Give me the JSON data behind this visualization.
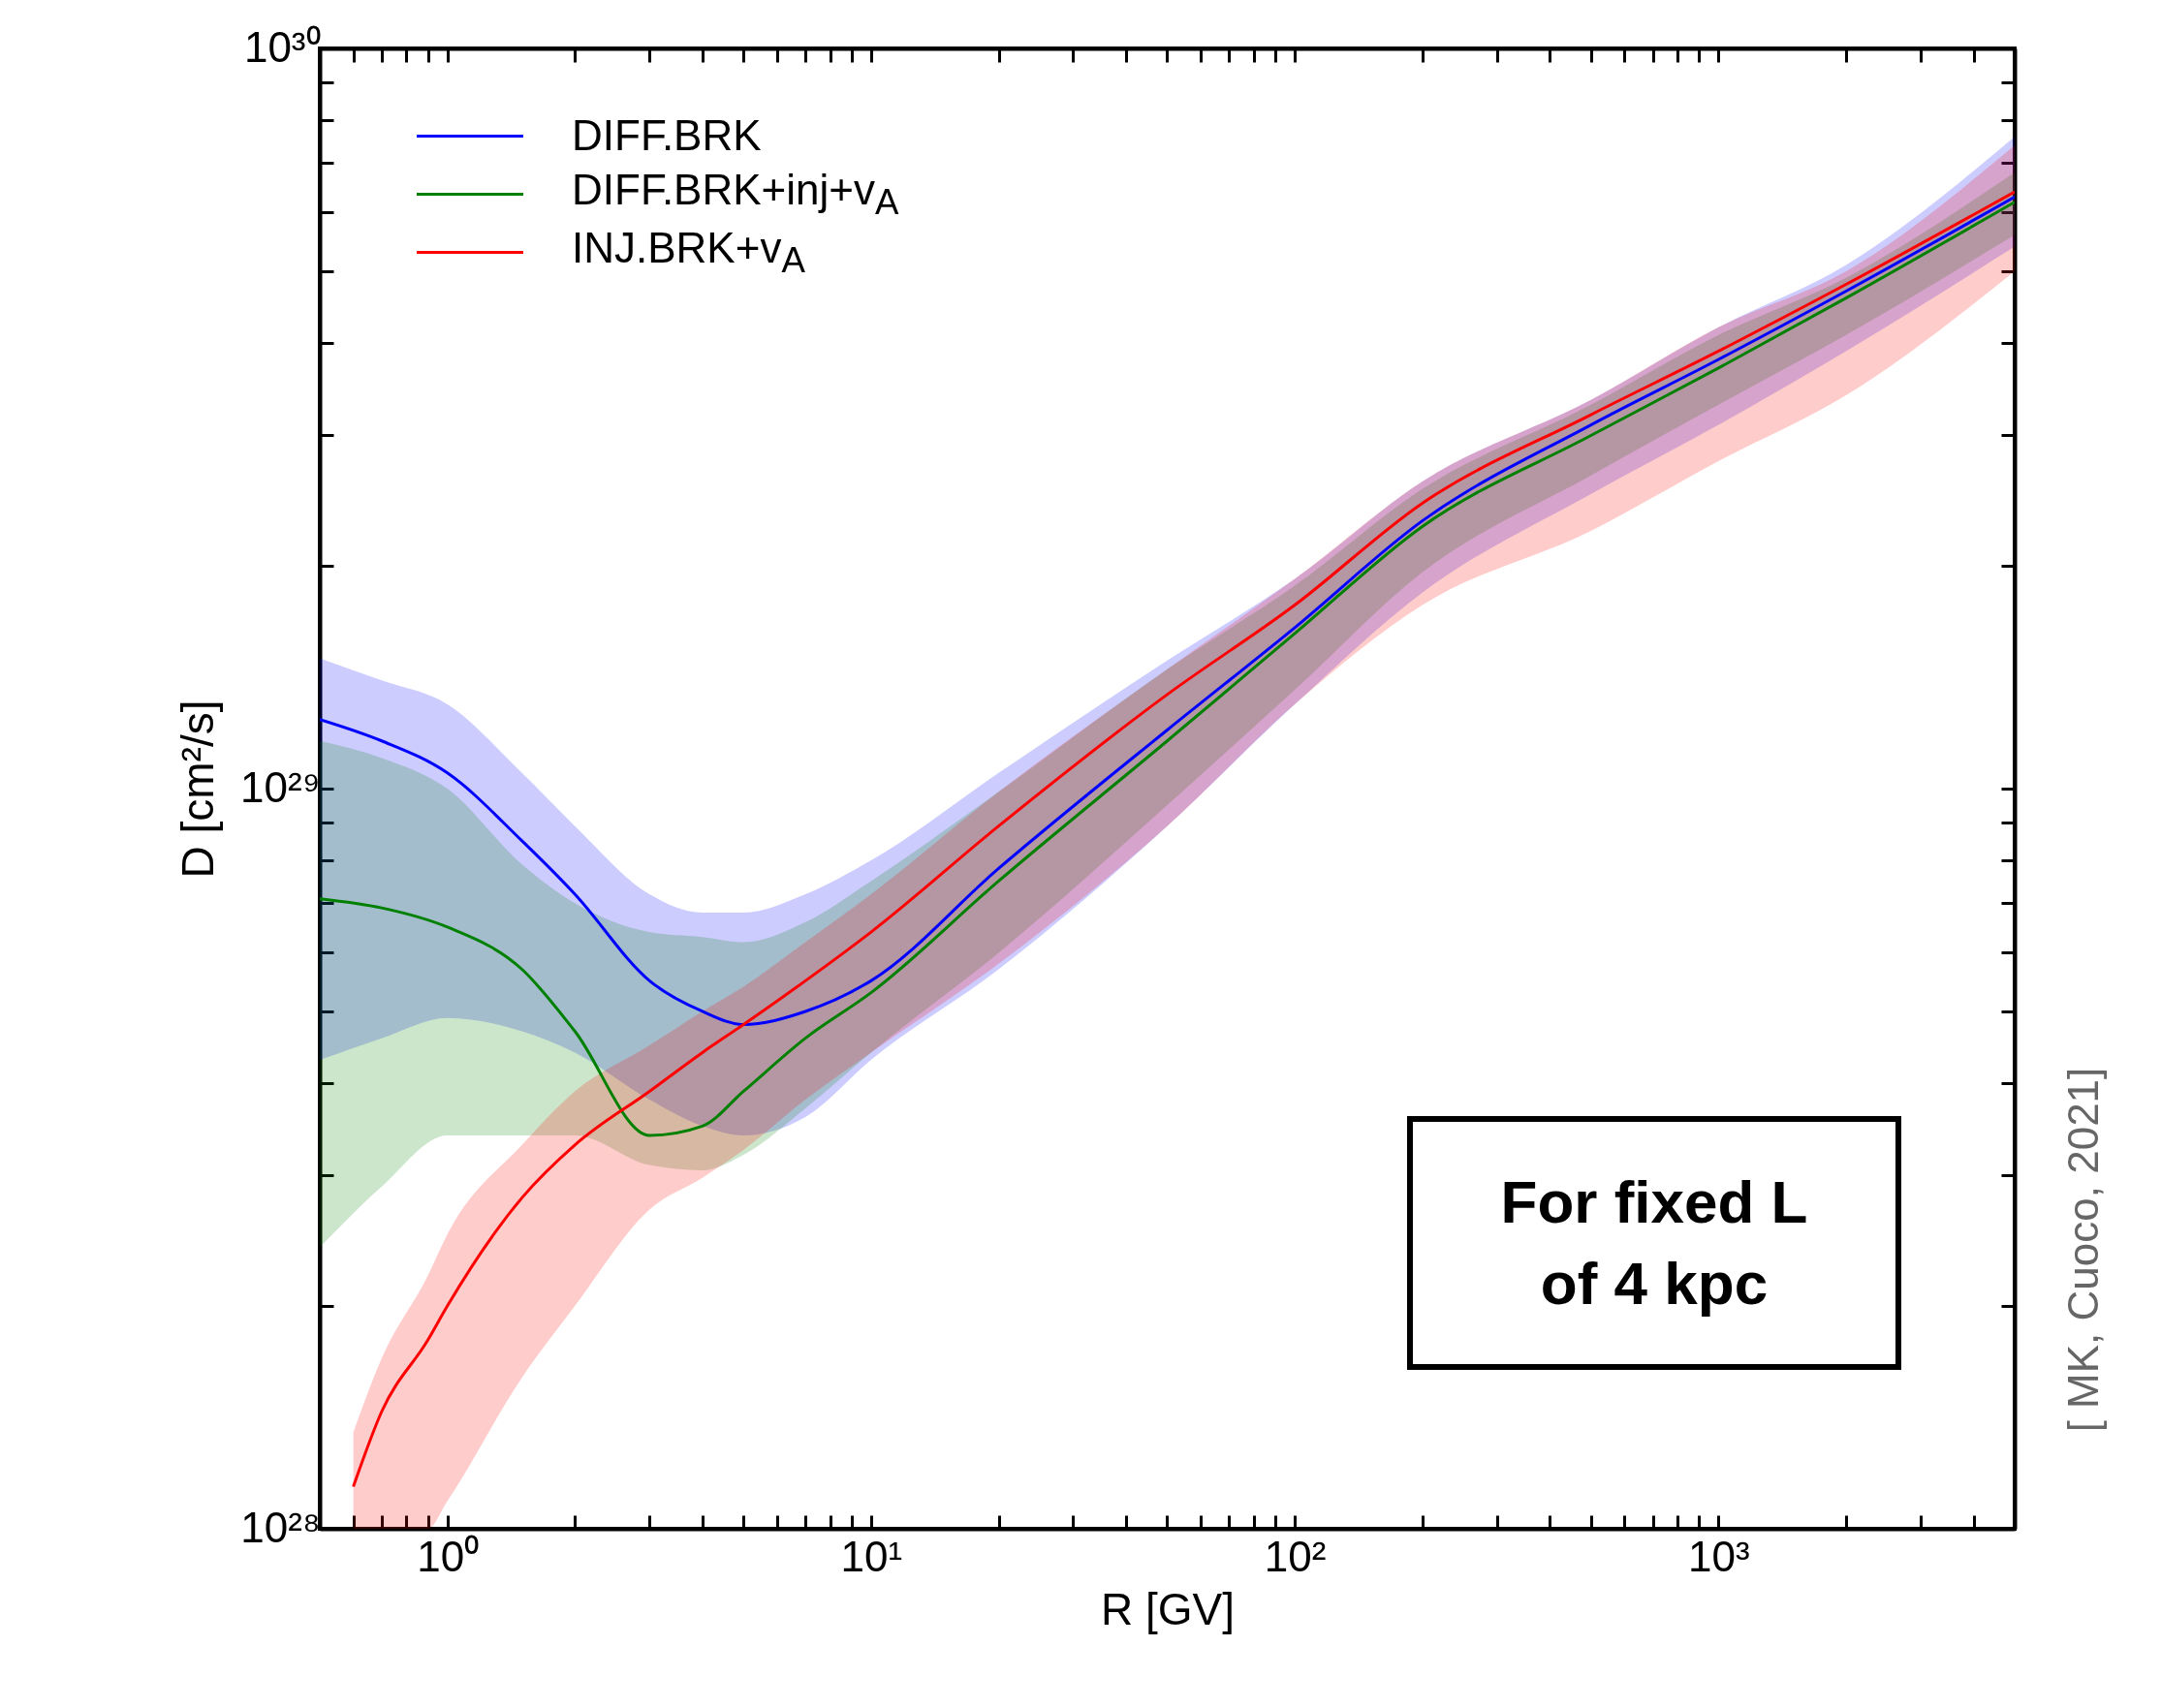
{
  "chart_data": {
    "type": "line",
    "xlabel": "R [GV]",
    "ylabel": "D [cm²/s]",
    "x": [
      0.5,
      0.7,
      1,
      1.5,
      2,
      3,
      4,
      5,
      7,
      10,
      20,
      50,
      100,
      200,
      500,
      1000,
      2000,
      5000
    ],
    "series": [
      {
        "name": "DIFF.BRK",
        "color": "#0000ff",
        "values": [
          1.24e+29,
          1.16e+29,
          1.05e+29,
          8.5e+28,
          7.2e+28,
          5.5e+28,
          5e+28,
          4.8e+28,
          5e+28,
          5.5e+28,
          7.8e+28,
          1.2e+29,
          1.65e+29,
          2.3e+29,
          3.1e+29,
          3.8e+29,
          4.7e+29,
          6.3e+29
        ],
        "lower": [
          4.3e+28,
          4.6e+28,
          4.9e+28,
          4.7e+28,
          4.4e+28,
          3.8e+28,
          3.5e+28,
          3.4e+28,
          3.6e+28,
          4.3e+28,
          5.7e+28,
          8.9e+28,
          1.3e+29,
          1.84e+29,
          2.5e+29,
          3.1e+29,
          3.9e+29,
          5.4e+29
        ],
        "upper": [
          1.5e+29,
          1.4e+29,
          1.3e+29,
          1.05e+29,
          8.9e+28,
          7.2e+28,
          6.8e+28,
          6.8e+28,
          7.2e+28,
          8e+28,
          1.05e+29,
          1.49e+29,
          1.92e+29,
          2.6e+29,
          3.35e+29,
          4.2e+29,
          5.1e+29,
          7.6e+29
        ]
      },
      {
        "name": "DIFF.BRK+inj+v$_{A}$",
        "color": "#008000",
        "values": [
          7.1e+28,
          6.9e+28,
          6.5e+28,
          5.7e+28,
          4.7e+28,
          3.4e+28,
          3.5e+28,
          3.9e+28,
          4.6e+28,
          5.3e+28,
          7.5e+28,
          1.16e+29,
          1.62e+29,
          2.26e+29,
          3e+29,
          3.7e+29,
          4.6e+29,
          6.2e+29
        ],
        "lower": [
          2.4e+28,
          2.9e+28,
          3.4e+28,
          3.4e+28,
          3.4e+28,
          3.1e+28,
          3.05e+28,
          3.2e+28,
          3.7e+28,
          4.4e+28,
          6e+28,
          9.5e+28,
          1.36e+29,
          1.96e+29,
          2.65e+29,
          3.3e+29,
          4.1e+29,
          5.6e+29
        ],
        "upper": [
          1.16e+29,
          1.1e+29,
          1e+29,
          7.9e+28,
          7e+28,
          6.4e+28,
          6.3e+28,
          6.2e+28,
          6.6e+28,
          7.5e+28,
          9.9e+28,
          1.45e+29,
          1.88e+29,
          2.54e+29,
          3.3e+29,
          4.1e+29,
          4.9e+29,
          6.8e+29
        ]
      },
      {
        "name": "INJ.BRK+v$_{A}$",
        "color": "#ff0000",
        "x": [
          0.6,
          0.7,
          0.9,
          1,
          1.5,
          2,
          3,
          4,
          5,
          7,
          10,
          20,
          50,
          100,
          200,
          500,
          1000,
          2000,
          5000
        ],
        "values": [
          1.14e+28,
          1.44e+28,
          1.8e+28,
          2e+28,
          2.8e+28,
          3.3e+28,
          3.9e+28,
          4.4e+28,
          4.8e+28,
          5.5e+28,
          6.4e+28,
          8.9e+28,
          1.34e+29,
          1.77e+29,
          2.43e+29,
          3.2e+29,
          3.9e+29,
          4.8e+29,
          6.4e+29
        ],
        "lower": [
          1e+28,
          1e+28,
          1e+28,
          1.09e+28,
          1.6e+28,
          2e+28,
          2.7e+28,
          2.98e+28,
          3.25e+28,
          3.8e+28,
          4.4e+28,
          5.8e+28,
          8.9e+28,
          1.3e+29,
          1.77e+29,
          2.23e+29,
          2.77e+29,
          3.4e+29,
          5e+29
        ],
        "upper": [
          1.35e+28,
          1.7e+28,
          2.2e+28,
          2.5e+28,
          3.3e+28,
          3.9e+28,
          4.5e+28,
          5e+28,
          5.4e+28,
          6.2e+28,
          7.2e+28,
          9.9e+28,
          1.45e+29,
          1.92e+29,
          2.6e+29,
          3.35e+29,
          4.2e+29,
          5e+29,
          7.4e+29
        ]
      }
    ],
    "log": "xy",
    "xlim": [
      0.5,
      5000
    ],
    "xticks": [
      {
        "value": 0.5,
        "label": null
      },
      {
        "value": 0.6,
        "label": null
      },
      {
        "value": 0.7,
        "label": null
      },
      {
        "value": 0.8,
        "label": null
      },
      {
        "value": 0.9,
        "label": null
      },
      {
        "value": 1,
        "label": "10⁰"
      },
      {
        "value": 2,
        "label": null
      },
      {
        "value": 3,
        "label": null
      },
      {
        "value": 4,
        "label": null
      },
      {
        "value": 5,
        "label": null
      },
      {
        "value": 6,
        "label": null
      },
      {
        "value": 7,
        "label": null
      },
      {
        "value": 8,
        "label": null
      },
      {
        "value": 9,
        "label": null
      },
      {
        "value": 10,
        "label": "10¹"
      },
      {
        "value": 20,
        "label": null
      },
      {
        "value": 30,
        "label": null
      },
      {
        "value": 40,
        "label": null
      },
      {
        "value": 50,
        "label": null
      },
      {
        "value": 60,
        "label": null
      },
      {
        "value": 70,
        "label": null
      },
      {
        "value": 80,
        "label": null
      },
      {
        "value": 90,
        "label": null
      },
      {
        "value": 100,
        "label": "10²"
      },
      {
        "value": 200,
        "label": null
      },
      {
        "value": 300,
        "label": null
      },
      {
        "value": 400,
        "label": null
      },
      {
        "value": 500,
        "label": null
      },
      {
        "value": 600,
        "label": null
      },
      {
        "value": 700,
        "label": null
      },
      {
        "value": 800,
        "label": null
      },
      {
        "value": 900,
        "label": null
      },
      {
        "value": 1000,
        "label": "10³"
      },
      {
        "value": 2000,
        "label": null
      },
      {
        "value": 3000,
        "label": null
      },
      {
        "value": 4000,
        "label": null
      },
      {
        "value": 5000,
        "label": null
      }
    ],
    "ylim": [
      1e+28,
      1e+30
    ],
    "yticks": [
      {
        "value": 1e+28,
        "label": "10²⁸"
      },
      {
        "value": 2e+28,
        "label": null
      },
      {
        "value": 3e+28,
        "label": null
      },
      {
        "value": 4e+28,
        "label": null
      },
      {
        "value": 5e+28,
        "label": null
      },
      {
        "value": 6e+28,
        "label": null
      },
      {
        "value": 7e+28,
        "label": null
      },
      {
        "value": 8e+28,
        "label": null
      },
      {
        "value": 9e+28,
        "label": null
      },
      {
        "value": 1e+29,
        "label": "10²⁹"
      },
      {
        "value": 2e+29,
        "label": null
      },
      {
        "value": 3e+29,
        "label": null
      },
      {
        "value": 4e+29,
        "label": null
      },
      {
        "value": 5e+29,
        "label": null
      },
      {
        "value": 6e+29,
        "label": null
      },
      {
        "value": 7e+29,
        "label": null
      },
      {
        "value": 8e+29,
        "label": null
      },
      {
        "value": 9e+29,
        "label": null
      },
      {
        "value": 1e+30,
        "label": "10³⁰"
      }
    ],
    "legend": "top left",
    "grid": false,
    "annotations": [
      "For fixed L",
      "of 4 kpc",
      "[ MK, Cuoco, 2021]"
    ]
  }
}
